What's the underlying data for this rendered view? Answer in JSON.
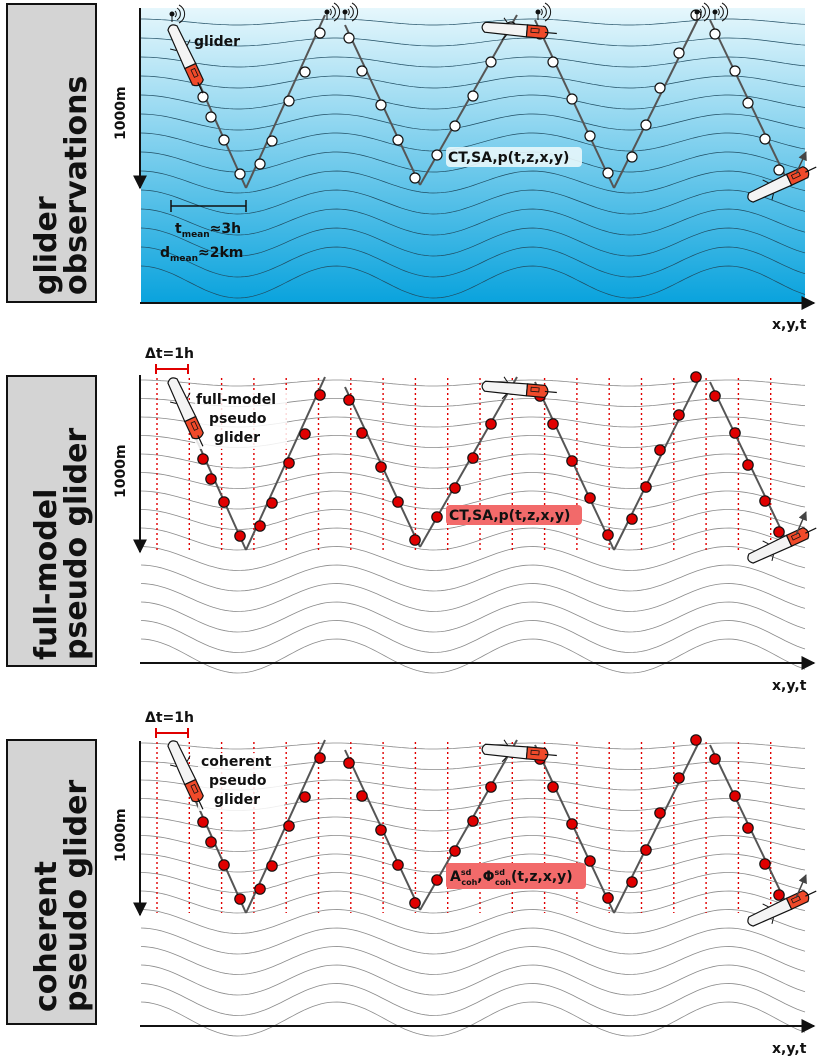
{
  "panels": [
    {
      "side_label_lines": [
        "glider",
        "observations"
      ],
      "depth_label": "1000m",
      "axis_label": "x,y,t",
      "glider_label": "glider",
      "variables_label": "CT,SA,p(t,z,x,y)",
      "t_mean_label": "t",
      "t_mean_sub": "mean",
      "t_mean_value": "≈3h",
      "d_mean_label": "d",
      "d_mean_sub": "mean",
      "d_mean_value": "≈2km",
      "marker_color": "#ffffff",
      "background": "ocean-gradient"
    },
    {
      "side_label_lines": [
        "full-model",
        "pseudo glider"
      ],
      "depth_label": "1000m",
      "axis_label": "x,y,t",
      "dt_label": "Δt=1h",
      "glider_label_lines": [
        "full-model",
        "pseudo",
        "glider"
      ],
      "variables_label": "CT,SA,p(t,z,x,y)",
      "marker_color": "#e00000",
      "background": "white"
    },
    {
      "side_label_lines": [
        "coherent",
        "pseudo glider"
      ],
      "depth_label": "1000m",
      "axis_label": "x,y,t",
      "dt_label": "Δt=1h",
      "glider_label_lines": [
        "coherent",
        "pseudo",
        "glider"
      ],
      "variables_label_parts": {
        "a": "A",
        "a_sup": "sd",
        "a_sub": "coh",
        "sep": ",",
        "phi": "Φ",
        "phi_sup": "sd",
        "phi_sub": "coh",
        "args": "(t,z,x,y)"
      },
      "marker_color": "#e00000",
      "background": "white"
    }
  ],
  "colors": {
    "ocean_top": "#e6f7fc",
    "ocean_bottom": "#0aa3dd",
    "glider_red": "#f04a2a",
    "dashed_red": "#e00000",
    "label_box": "#d4d4d4",
    "highlight_red": "#f26a6a"
  },
  "icons": [
    "wifi-signal-icon",
    "glider-icon"
  ]
}
